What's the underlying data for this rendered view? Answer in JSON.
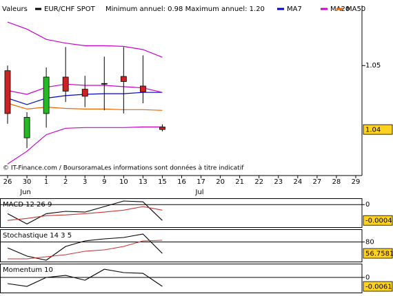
{
  "chart_data": [
    {
      "type": "candlestick",
      "title": "Valeurs",
      "subtitle": "Minimum annuel: 0.98 Maximum annuel: 1.20",
      "note": "© IT-Finance.com / BoursoramaLes informations sont données à titre indicatif",
      "categories": [
        "26",
        "30",
        "1",
        "2",
        "3",
        "9",
        "10",
        "13",
        "15",
        "16",
        "17",
        "20",
        "21",
        "22",
        "23",
        "24",
        "27",
        "28",
        "29"
      ],
      "months": [
        {
          "label": "Jun",
          "category": 1
        },
        {
          "label": "Jul",
          "category": 10
        }
      ],
      "ylim": [
        1.0328,
        1.0581
      ],
      "yticks": [
        1.05
      ],
      "last_value": 1.04,
      "candles": {
        "name": "EUR/CHF SPOT",
        "color": "#000000",
        "up_color": "#22bb22",
        "down_color": "#cc2222",
        "open": [
          1.0492,
          1.0387,
          1.0425,
          1.0482,
          1.0463,
          1.0472,
          1.0483,
          1.0468,
          1.0404,
          null,
          null,
          null,
          null,
          null,
          null,
          null,
          null,
          null,
          null
        ],
        "high": [
          1.05,
          1.0427,
          1.0497,
          1.0529,
          1.0484,
          1.0514,
          1.0529,
          1.0516,
          1.0408,
          null,
          null,
          null,
          null,
          null,
          null,
          null,
          null,
          null,
          null
        ],
        "low": [
          1.0409,
          1.0371,
          1.0403,
          1.0443,
          1.0435,
          1.043,
          1.0425,
          1.0441,
          1.0397,
          null,
          null,
          null,
          null,
          null,
          null,
          null,
          null,
          null,
          null
        ],
        "close": [
          1.0425,
          1.0419,
          1.0482,
          1.046,
          1.0452,
          1.0472,
          1.0475,
          1.0459,
          1.04,
          null,
          null,
          null,
          null,
          null,
          null,
          null,
          null,
          null,
          null
        ]
      },
      "series": [
        {
          "name": "MA7",
          "color": "#0000cc",
          "values": [
            1.0449,
            1.0439,
            1.0449,
            1.0453,
            1.0455,
            1.0456,
            1.0456,
            1.0458,
            1.0458,
            null,
            null,
            null,
            null,
            null,
            null,
            null,
            null,
            null,
            null
          ]
        },
        {
          "name": "MA20",
          "color": "#cc00cc",
          "values": [
            1.0461,
            1.0455,
            1.0466,
            1.0471,
            1.0469,
            1.0469,
            1.0467,
            1.0465,
            1.0458,
            null,
            null,
            null,
            null,
            null,
            null,
            null,
            null,
            null,
            null
          ]
        },
        {
          "name": "MA50",
          "color": "#ee6600",
          "values": [
            1.0441,
            1.0432,
            1.0435,
            1.0433,
            1.0432,
            1.0432,
            1.0431,
            1.0431,
            1.043,
            null,
            null,
            null,
            null,
            null,
            null,
            null,
            null,
            null,
            null
          ]
        },
        {
          "color": "#cc00cc",
          "values": [
            1.0568,
            1.0557,
            1.0541,
            1.0535,
            1.0531,
            1.0531,
            1.053,
            1.0525,
            1.0513,
            null,
            null,
            null,
            null,
            null,
            null,
            null,
            null,
            null,
            null
          ]
        },
        {
          "color": "#cc00cc",
          "values": [
            1.0346,
            1.0366,
            1.0392,
            1.0402,
            1.0403,
            1.0403,
            1.0403,
            1.0404,
            1.0404,
            null,
            null,
            null,
            null,
            null,
            null,
            null,
            null,
            null,
            null
          ]
        }
      ]
    },
    {
      "type": "line",
      "title": "MACD 12 26 9",
      "ylim": [
        -0.00057,
        0.00016
      ],
      "yticks": [
        0
      ],
      "last_value": -0.0004,
      "series": [
        {
          "color": "#000000",
          "values": [
            -0.00023,
            -0.00049,
            -0.00023,
            -0.00017,
            -0.00019,
            -5e-05,
            9e-05,
            7e-05,
            -0.0004,
            null,
            null,
            null,
            null,
            null,
            null,
            null,
            null,
            null,
            null
          ]
        },
        {
          "color": "#cc3333",
          "values": [
            -0.0004,
            -0.00035,
            -0.00028,
            -0.00026,
            -0.00023,
            -0.00019,
            -0.00014,
            -5e-05,
            -0.00014,
            null,
            null,
            null,
            null,
            null,
            null,
            null,
            null,
            null,
            null
          ]
        }
      ]
    },
    {
      "type": "line",
      "title": "Stochastique 14 3 5",
      "ylim": [
        40,
        106
      ],
      "yticks": [
        80
      ],
      "last_value": 56.7581,
      "series": [
        {
          "color": "#000000",
          "values": [
            68.1,
            51.2,
            42.8,
            70.9,
            82.1,
            86.3,
            89.1,
            96.2,
            56.7581,
            null,
            null,
            null,
            null,
            null,
            null,
            null,
            null,
            null,
            null
          ]
        },
        {
          "color": "#cc3333",
          "values": [
            45.6,
            45.6,
            49.8,
            54.0,
            61.1,
            63.9,
            70.9,
            82.1,
            83.5,
            null,
            null,
            null,
            null,
            null,
            null,
            null,
            null,
            null,
            null
          ]
        }
      ]
    },
    {
      "type": "line",
      "title": "Momentum 10",
      "ylim": [
        -0.0103,
        0.0094
      ],
      "yticks": [
        0
      ],
      "last_value": -0.0061,
      "series": [
        {
          "color": "#000000",
          "values": [
            -0.0042,
            -0.0061,
            0,
            0.0014,
            -0.0019,
            0.0056,
            0.0033,
            0.0028,
            -0.0061,
            null,
            null,
            null,
            null,
            null,
            null,
            null,
            null,
            null,
            null
          ]
        }
      ]
    }
  ]
}
